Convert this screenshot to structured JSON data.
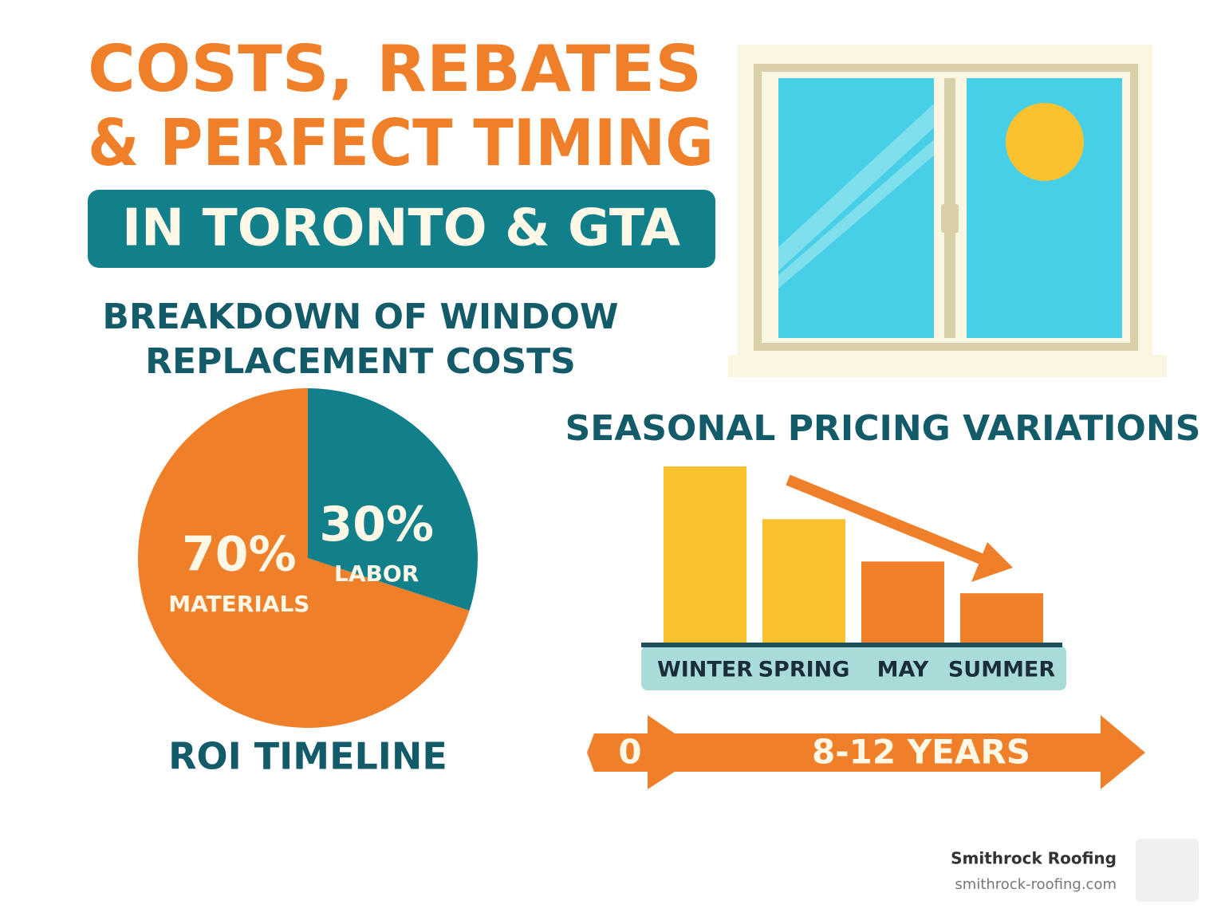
{
  "header": {
    "title_lines": [
      "COSTS, REBATES",
      "& PERFECT TIMING"
    ],
    "subtitle": "IN TORONTO & GTA"
  },
  "chart_data": [
    {
      "type": "pie",
      "title": [
        "BREAKDOWN OF WINDOW",
        "REPLACEMENT COSTS"
      ],
      "categories": [
        "MATERIALS",
        "LABOR"
      ],
      "values": [
        70,
        30
      ],
      "value_labels": [
        "70%",
        "30%"
      ],
      "colors": [
        "#f07f2a",
        "#11808a"
      ]
    },
    {
      "type": "bar",
      "title": "SEASONAL PRICING VARIATIONS",
      "categories": [
        "WINTER",
        "SPRING",
        "MAY",
        "SUMMER"
      ],
      "values": [
        100,
        70,
        46,
        28
      ],
      "colors": [
        "#fbc22f",
        "#fbc22f",
        "#f07f2a",
        "#f07f2a"
      ],
      "ylim": [
        0,
        100
      ]
    }
  ],
  "roi": {
    "title": "ROI TIMELINE",
    "start": "0",
    "end": "8-12 YEARS"
  },
  "footer": {
    "brand": "Smithrock Roofing",
    "url": "smithrock-roofing.com"
  }
}
